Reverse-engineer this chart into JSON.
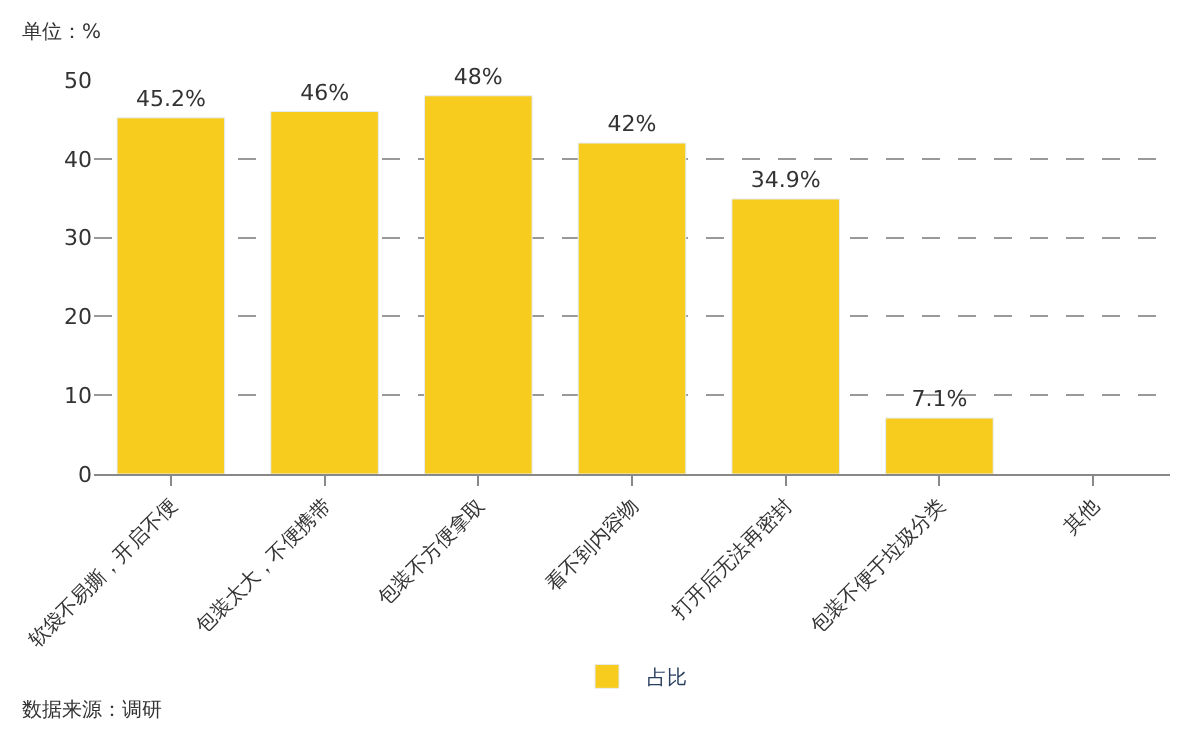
{
  "chart_data": {
    "type": "bar",
    "categories": [
      "软袋不易撕，开启不便",
      "包装太大，不便携带",
      "包装不方便拿取",
      "看不到内容物",
      "打开后无法再密封",
      "包装不便于垃圾分类",
      "其他"
    ],
    "series": [
      {
        "name": "占比",
        "color": "#f7cc1f",
        "values": [
          45.2,
          46,
          48,
          42,
          34.9,
          7.1,
          null
        ],
        "value_labels": [
          "45.2%",
          "46%",
          "48%",
          "42%",
          "34.9%",
          "7.1%",
          null
        ]
      }
    ],
    "ylim": [
      0,
      50
    ],
    "yticks": [
      0,
      10,
      20,
      30,
      40,
      50
    ],
    "grid": "y",
    "legend": "bottom",
    "annotations": [
      "单位：%",
      "数据来源：调研"
    ]
  }
}
